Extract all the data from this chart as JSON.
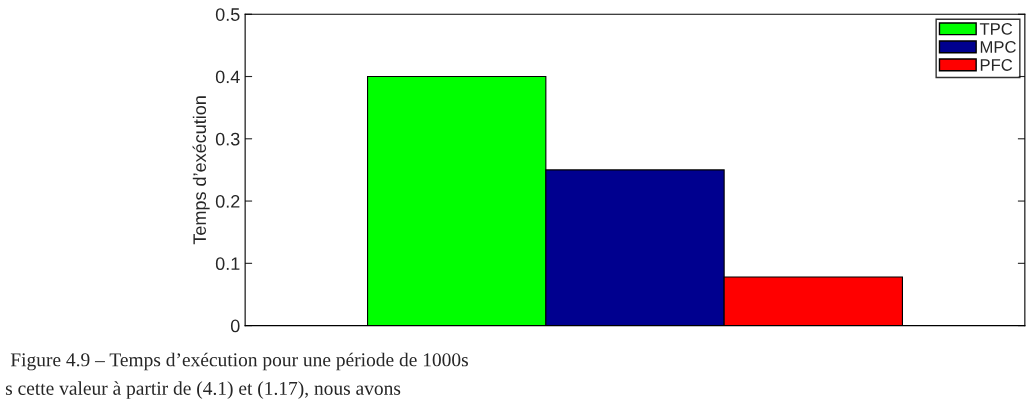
{
  "chart_data": {
    "type": "bar",
    "ylabel": "Temps d’exécution",
    "categories": [
      null
    ],
    "series": [
      {
        "name": "TPC",
        "color": "#00ff00",
        "values": [
          0.4
        ]
      },
      {
        "name": "MPC",
        "color": "#00008f",
        "values": [
          0.25
        ]
      },
      {
        "name": "PFC",
        "color": "#ff0000",
        "values": [
          0.078
        ]
      }
    ],
    "ylim": [
      0,
      0.5
    ],
    "yticks": [
      0,
      0.1,
      0.2,
      0.3,
      0.4,
      0.5
    ],
    "tick_labels": "y",
    "grid": false,
    "legend": "top right",
    "annotations": [
      "Figure 4.9 – Temps d’exécution pour une période de 1000s",
      "s cette valeur à partir de (4.1) et (1.17), nous avons"
    ]
  }
}
